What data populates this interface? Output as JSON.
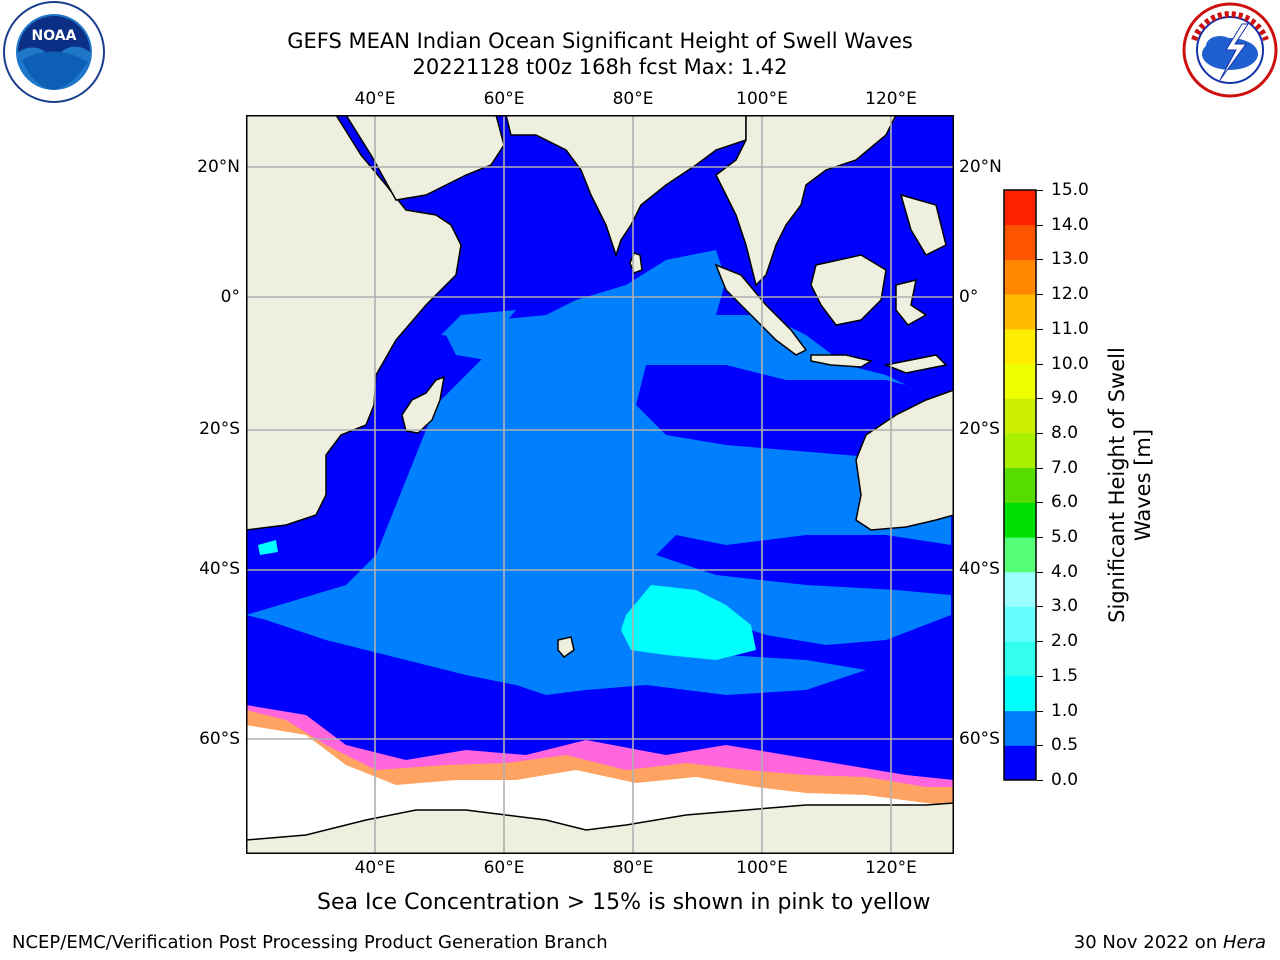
{
  "header": {
    "title_line1": "GEFS MEAN Indian Ocean Significant Height of Swell Waves",
    "title_line2": "20221128 t00z 168h fcst   Max: 1.42"
  },
  "logos": {
    "left": {
      "name": "NOAA",
      "ring_text": "NATIONAL OCEANIC AND ATMOSPHERIC ADMINISTRATION · U.S. DEPARTMENT OF COMMERCE"
    },
    "right": {
      "name": "NATIONAL WEATHER SERVICE"
    }
  },
  "map": {
    "lon_labels": [
      "40°E",
      "60°E",
      "80°E",
      "100°E",
      "120°E"
    ],
    "lat_labels": [
      "20°N",
      "0°",
      "20°S",
      "40°S",
      "60°S"
    ],
    "colors": {
      "land": "#efefdf",
      "ice_white": "#ffffff",
      "ice_pink": "#ff66dd",
      "ice_orange": "#ffaa55",
      "grid": "#b0b0b0"
    }
  },
  "colorbar": {
    "label": "Significant Height of Swell Waves [m]",
    "ticks": [
      "0.0",
      "0.5",
      "1.0",
      "1.5",
      "2.0",
      "3.0",
      "4.0",
      "5.0",
      "6.0",
      "7.0",
      "8.0",
      "9.0",
      "10.0",
      "11.0",
      "12.0",
      "13.0",
      "14.0",
      "15.0"
    ],
    "colors": [
      "#0000ff",
      "#0080ff",
      "#00ffff",
      "#33ffee",
      "#66ffff",
      "#99ffff",
      "#55ff77",
      "#00e000",
      "#55dd00",
      "#aaee00",
      "#ccee00",
      "#eeff00",
      "#ffee00",
      "#ffbb00",
      "#ff8800",
      "#ff5500",
      "#ff2200",
      "#ff0000"
    ]
  },
  "caption": "Sea Ice Concentration > 15% is shown in pink to yellow",
  "footer": {
    "left": "NCEP/EMC/Verification Post Processing Product Generation Branch",
    "right_date": "30 Nov 2022 on ",
    "right_machine": "Hera"
  }
}
